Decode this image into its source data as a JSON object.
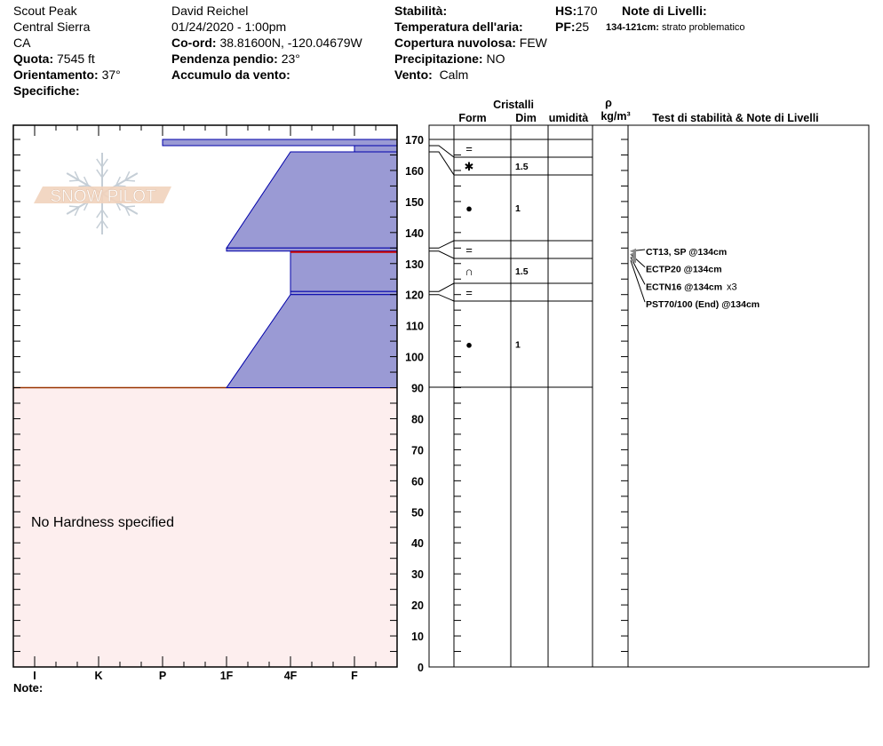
{
  "header": {
    "col1": {
      "location": "Scout Peak",
      "range": "Central Sierra",
      "state": "CA",
      "elevation_label": "Quota:",
      "elevation": "7545 ft",
      "aspect_label": "Orientamento:",
      "aspect": "37°",
      "specifics_label": "Specifiche:"
    },
    "col2": {
      "observer": "David Reichel",
      "datetime": "01/24/2020 - 1:00pm",
      "coord_label": "Co-ord:",
      "coord": "38.81600N, -120.04679W",
      "slope_label": "Pendenza pendio:",
      "slope": "23°",
      "wind_loading_label": "Accumulo da vento:"
    },
    "col3": {
      "stability_label": "Stabilità:",
      "air_temp_label": "Temperatura dell'aria:",
      "sky_label": "Copertura nuvolosa:",
      "sky": "FEW",
      "precip_label": "Precipitazione:",
      "precip": "NO",
      "wind_label": "Vento:",
      "wind": "Calm"
    },
    "col4": {
      "hs_label": "HS:",
      "hs": "170",
      "pf_label": "PF:",
      "pf": "25"
    },
    "col5": {
      "notes_label": "Note di Livelli:",
      "note_range": "134-121cm:",
      "note_text": "strato problematico"
    }
  },
  "logo": {
    "text": "SNOW PILOT"
  },
  "columns": {
    "crystals": "Cristalli",
    "form": "Form",
    "size": "Dim",
    "moisture": "umidità",
    "rho": "ρ",
    "density_unit": "kg/m³",
    "tests": "Test di stabilità & Note di Livelli"
  },
  "no_hardness": "No Hardness specified",
  "note_label": "Note:",
  "colors": {
    "layer_fill": "#9a9ad4",
    "layer_stroke": "#0000aa",
    "problem_layer": "#cc0000",
    "no_hardness_fill": "#fdeeee",
    "no_hardness_line": "#993300"
  },
  "chart_data": {
    "type": "snow-profile",
    "depth_axis": {
      "range": [
        0,
        170
      ],
      "unit": "cm",
      "ticks": [
        0,
        10,
        20,
        30,
        40,
        50,
        60,
        70,
        80,
        90,
        100,
        110,
        120,
        130,
        140,
        150,
        160,
        170
      ]
    },
    "hardness_axis": {
      "ticks": [
        "I",
        "K",
        "P",
        "1F",
        "4F",
        "F"
      ]
    },
    "layers": [
      {
        "top": 170,
        "bottom": 168,
        "hardness_top": "P",
        "hardness_bottom": "P",
        "form": "=",
        "form_icon": "equals-icon",
        "size": ""
      },
      {
        "top": 168,
        "bottom": 166,
        "hardness_top": "F",
        "hardness_bottom": "F",
        "form": "✱",
        "form_icon": "asterisk-icon",
        "size": "1.5"
      },
      {
        "top": 166,
        "bottom": 135,
        "hardness_top": "4F",
        "hardness_bottom": "1F",
        "form": "●",
        "form_icon": "round-grain-icon",
        "size": "1"
      },
      {
        "top": 135,
        "bottom": 134,
        "hardness_top": "1F",
        "hardness_bottom": "1F",
        "form": "=",
        "form_icon": "equals-icon",
        "size": ""
      },
      {
        "top": 134,
        "bottom": 121,
        "hardness_top": "4F",
        "hardness_bottom": "4F",
        "form": "∩",
        "form_icon": "faceted-crystal-icon",
        "size": "1.5",
        "problem": true
      },
      {
        "top": 121,
        "bottom": 120,
        "hardness_top": "4F",
        "hardness_bottom": "4F",
        "form": "=",
        "form_icon": "equals-icon",
        "size": ""
      },
      {
        "top": 120,
        "bottom": 90,
        "hardness_top": "4F",
        "hardness_bottom": "1F",
        "form": "●",
        "form_icon": "round-grain-icon",
        "size": "1"
      }
    ],
    "no_hardness_below": 90,
    "stability_tests": [
      {
        "text": "CT13, SP @134cm",
        "depth": 134,
        "extra": ""
      },
      {
        "text": "ECTP20 @134cm",
        "depth": 134,
        "extra": ""
      },
      {
        "text": "ECTN16 @134cm",
        "depth": 134,
        "extra": "x3"
      },
      {
        "text": "PST70/100 (End) @134cm",
        "depth": 134,
        "extra": ""
      }
    ]
  }
}
